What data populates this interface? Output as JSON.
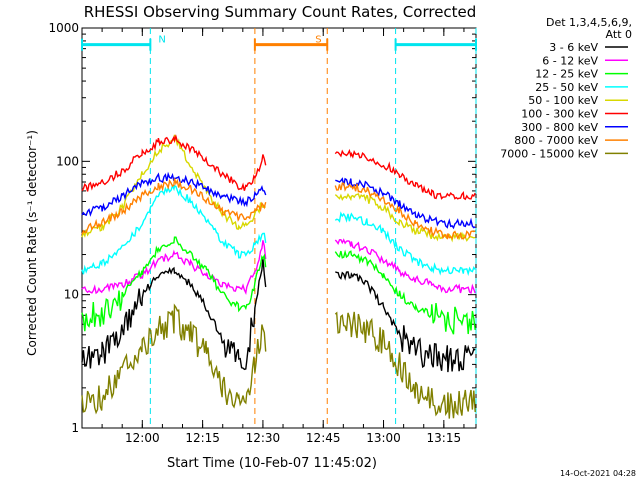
{
  "chart_data": {
    "type": "line",
    "title": "RHESSI Observing Summary Count Rates, Corrected",
    "xlabel": "Start Time (10-Feb-07 11:45:02)",
    "ylabel": "Corrected Count Rate (s⁻¹ detector⁻¹)",
    "y_scale": "log",
    "ylim": [
      1,
      1000
    ],
    "xlim": [
      "11:45",
      "13:23"
    ],
    "x_ticks": [
      "12:00",
      "12:15",
      "12:30",
      "12:45",
      "13:00",
      "13:15"
    ],
    "y_ticks": [
      "1",
      "10",
      "100",
      "1000"
    ],
    "detector_label": "Det 1,3,4,5,6,9,",
    "attenuator_label": "Att 0",
    "timestamp": "14-Oct-2021 04:28",
    "data_gap": [
      "12:31",
      "12:46"
    ],
    "series": [
      {
        "name": "3 - 6 keV",
        "color": "#000000",
        "x": [
          "11:45",
          "11:50",
          "11:55",
          "12:00",
          "12:04",
          "12:08",
          "12:12",
          "12:16",
          "12:20",
          "12:24",
          "12:26",
          "12:28",
          "12:30",
          "12:31",
          "12:46",
          "12:48",
          "12:52",
          "12:56",
          "13:00",
          "13:04",
          "13:08",
          "13:12",
          "13:16",
          "13:20",
          "13:23"
        ],
        "values": [
          3.2,
          3.5,
          5,
          10,
          14,
          15,
          12,
          8,
          4.5,
          3.2,
          3.5,
          8,
          18,
          10,
          null,
          14,
          14,
          12,
          8,
          5,
          3.8,
          3.5,
          3.3,
          3.3,
          3.3
        ]
      },
      {
        "name": "6 - 12 keV",
        "color": "#ff00ff",
        "x": [
          "11:45",
          "11:50",
          "11:55",
          "12:00",
          "12:04",
          "12:08",
          "12:12",
          "12:16",
          "12:20",
          "12:24",
          "12:26",
          "12:28",
          "12:30",
          "12:31",
          "12:46",
          "12:48",
          "12:52",
          "12:56",
          "13:00",
          "13:04",
          "13:08",
          "13:12",
          "13:16",
          "13:20",
          "13:23"
        ],
        "values": [
          11,
          11,
          12,
          14,
          18,
          20,
          17,
          14,
          12,
          11,
          11,
          15,
          24,
          18,
          null,
          25,
          24,
          22,
          18,
          15,
          13,
          12,
          11,
          11,
          11
        ]
      },
      {
        "name": "12 - 25 keV",
        "color": "#00ff00",
        "x": [
          "11:45",
          "11:50",
          "11:55",
          "12:00",
          "12:04",
          "12:08",
          "12:12",
          "12:16",
          "12:20",
          "12:24",
          "12:26",
          "12:28",
          "12:30",
          "12:31",
          "12:46",
          "12:48",
          "12:52",
          "12:56",
          "13:00",
          "13:04",
          "13:08",
          "13:12",
          "13:16",
          "13:20",
          "13:23"
        ],
        "values": [
          6.5,
          7.5,
          10,
          15,
          22,
          26,
          20,
          15,
          10,
          8,
          8,
          12,
          20,
          16,
          null,
          20,
          20,
          18,
          14,
          10,
          8,
          7,
          6.5,
          6.5,
          6.5
        ]
      },
      {
        "name": "25 - 50 keV",
        "color": "#00ffff",
        "x": [
          "11:45",
          "11:50",
          "11:55",
          "12:00",
          "12:04",
          "12:08",
          "12:12",
          "12:16",
          "12:20",
          "12:24",
          "12:26",
          "12:28",
          "12:30",
          "12:31",
          "12:46",
          "12:48",
          "12:52",
          "12:56",
          "13:00",
          "13:04",
          "13:08",
          "13:12",
          "13:16",
          "13:20",
          "13:23"
        ],
        "values": [
          15,
          17,
          22,
          35,
          55,
          65,
          50,
          35,
          25,
          20,
          20,
          24,
          28,
          25,
          null,
          38,
          38,
          35,
          30,
          22,
          18,
          16,
          15,
          15,
          15
        ]
      },
      {
        "name": "50 - 100 keV",
        "color": "#d8d800",
        "x": [
          "11:45",
          "11:50",
          "11:55",
          "12:00",
          "12:04",
          "12:08",
          "12:12",
          "12:16",
          "12:20",
          "12:24",
          "12:26",
          "12:28",
          "12:30",
          "12:31",
          "12:46",
          "12:48",
          "12:52",
          "12:56",
          "13:00",
          "13:04",
          "13:08",
          "13:12",
          "13:16",
          "13:20",
          "13:23"
        ],
        "values": [
          28,
          32,
          45,
          80,
          120,
          150,
          95,
          60,
          40,
          32,
          33,
          40,
          48,
          45,
          null,
          55,
          55,
          52,
          45,
          35,
          30,
          28,
          27,
          27,
          27
        ]
      },
      {
        "name": "100 - 300 keV",
        "color": "#ff0000",
        "x": [
          "11:45",
          "11:50",
          "11:55",
          "12:00",
          "12:04",
          "12:08",
          "12:12",
          "12:16",
          "12:20",
          "12:24",
          "12:26",
          "12:28",
          "12:30",
          "12:31",
          "12:46",
          "12:48",
          "12:52",
          "12:56",
          "13:00",
          "13:04",
          "13:08",
          "13:12",
          "13:16",
          "13:20",
          "13:23"
        ],
        "values": [
          62,
          68,
          85,
          115,
          140,
          148,
          125,
          100,
          80,
          65,
          62,
          75,
          105,
          98,
          null,
          110,
          115,
          108,
          95,
          80,
          65,
          57,
          55,
          55,
          55
        ]
      },
      {
        "name": "300 - 800 keV",
        "color": "#0000ff",
        "x": [
          "11:45",
          "11:50",
          "11:55",
          "12:00",
          "12:04",
          "12:08",
          "12:12",
          "12:16",
          "12:20",
          "12:24",
          "12:26",
          "12:28",
          "12:30",
          "12:31",
          "12:46",
          "12:48",
          "12:52",
          "12:56",
          "13:00",
          "13:04",
          "13:08",
          "13:12",
          "13:16",
          "13:20",
          "13:23"
        ],
        "values": [
          40,
          45,
          55,
          68,
          75,
          75,
          70,
          62,
          55,
          50,
          50,
          55,
          62,
          58,
          null,
          70,
          70,
          65,
          58,
          48,
          40,
          36,
          34,
          34,
          34
        ]
      },
      {
        "name": "800 - 7000 keV",
        "color": "#ff8000",
        "x": [
          "11:45",
          "11:50",
          "11:55",
          "12:00",
          "12:04",
          "12:08",
          "12:12",
          "12:16",
          "12:20",
          "12:24",
          "12:26",
          "12:28",
          "12:30",
          "12:31",
          "12:46",
          "12:48",
          "12:52",
          "12:56",
          "13:00",
          "13:04",
          "13:08",
          "13:12",
          "13:16",
          "13:20",
          "13:23"
        ],
        "values": [
          30,
          35,
          42,
          55,
          65,
          70,
          62,
          52,
          42,
          38,
          38,
          42,
          48,
          46,
          null,
          65,
          65,
          60,
          52,
          42,
          34,
          30,
          28,
          28,
          28
        ]
      },
      {
        "name": "7000 - 15000 keV",
        "color": "#808000",
        "x": [
          "11:45",
          "11:50",
          "11:55",
          "12:00",
          "12:04",
          "12:08",
          "12:12",
          "12:16",
          "12:20",
          "12:24",
          "12:26",
          "12:28",
          "12:30",
          "12:31",
          "12:46",
          "12:48",
          "12:52",
          "12:56",
          "13:00",
          "13:04",
          "13:08",
          "13:12",
          "13:16",
          "13:20",
          "13:23"
        ],
        "values": [
          1.5,
          1.7,
          2.5,
          4,
          5.5,
          6.5,
          5,
          3.5,
          2,
          1.5,
          1.5,
          3,
          6,
          4,
          null,
          6,
          6,
          5.5,
          4.5,
          3,
          2,
          1.6,
          1.5,
          1.5,
          1.5
        ]
      }
    ],
    "annotations": [
      {
        "label": "N",
        "color": "#00e5ee",
        "spans": [
          [
            "11:45",
            "12:02"
          ],
          [
            "13:03",
            "13:23"
          ]
        ],
        "level": 750
      },
      {
        "label": "S",
        "color": "#ff8000",
        "spans": [
          [
            "12:28",
            "12:46"
          ]
        ],
        "level": 750
      }
    ],
    "markers": [
      {
        "time": "12:02",
        "color": "#00e5ee"
      },
      {
        "time": "13:03",
        "color": "#00e5ee"
      },
      {
        "time": "13:23",
        "color": "#00e5ee"
      },
      {
        "time": "12:28",
        "color": "#ff8000"
      },
      {
        "time": "12:46",
        "color": "#ff8000"
      }
    ]
  }
}
